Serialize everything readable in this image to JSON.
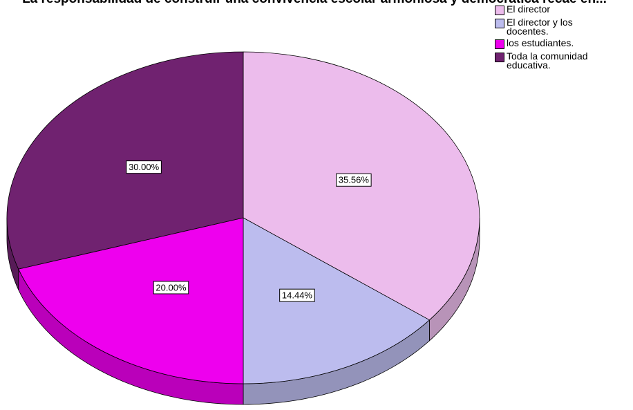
{
  "chart_data": {
    "type": "pie",
    "title": "La responsabilidad de construir una convivencia escolar armoniosa y democrática recae en...",
    "categories": [
      "El director",
      "El director y los docentes.",
      "los estudiantes.",
      "Toda la comunidad educativa."
    ],
    "values": [
      35.56,
      14.44,
      20,
      30
    ],
    "value_labels": [
      "35.56%",
      "14.44%",
      "20.00%",
      "30.00%"
    ],
    "colors": [
      "#ecbcec",
      "#bcbcee",
      "#ee00ee",
      "#702270"
    ],
    "legend": "top-right"
  }
}
